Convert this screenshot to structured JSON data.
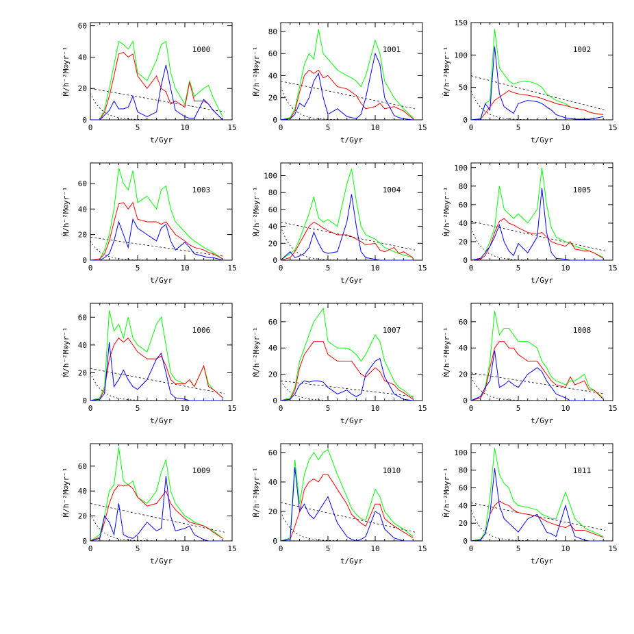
{
  "chart_data": {
    "type": "line",
    "layout": "4x3 grid",
    "xlabel": "t/Gyr",
    "ylabel": "Ṁ/h⁻²M⊙yr⁻¹",
    "xlim": [
      0,
      15
    ],
    "xticks": [
      0,
      5,
      10,
      15
    ],
    "series_colors": {
      "total": "#00ff00",
      "red": "#ff0000",
      "blue": "#0000ff",
      "dashed": "#000000"
    },
    "t": [
      0,
      1,
      1.5,
      2,
      2.5,
      3,
      3.5,
      4,
      4.5,
      5,
      6,
      7,
      7.5,
      8,
      8.5,
      9,
      10,
      10.5,
      11,
      12,
      12.5,
      13,
      14
    ],
    "panels": [
      {
        "label": "1000",
        "ylim": [
          0,
          62
        ],
        "yticks": [
          0,
          20,
          40,
          60
        ],
        "dash": [
          20,
          5,
          17
        ],
        "green": [
          0,
          0,
          7,
          20,
          35,
          50,
          48,
          45,
          50,
          30,
          25,
          38,
          48,
          50,
          30,
          20,
          10,
          25,
          15,
          20,
          22,
          14,
          2
        ],
        "red": [
          0,
          0,
          5,
          15,
          28,
          42,
          43,
          40,
          42,
          28,
          20,
          28,
          20,
          18,
          10,
          12,
          8,
          24,
          12,
          12,
          10,
          6,
          0
        ],
        "blue": [
          0,
          0,
          3,
          6,
          12,
          7,
          7,
          8,
          15,
          5,
          2,
          5,
          22,
          35,
          20,
          6,
          2,
          1,
          1,
          13,
          10,
          6,
          0
        ]
      },
      {
        "label": "1001",
        "ylim": [
          0,
          88
        ],
        "yticks": [
          0,
          20,
          40,
          60,
          80
        ],
        "dash": [
          35,
          10,
          30
        ],
        "green": [
          0,
          2,
          10,
          30,
          50,
          60,
          55,
          82,
          60,
          55,
          45,
          40,
          38,
          35,
          30,
          40,
          72,
          60,
          35,
          20,
          15,
          10,
          2
        ],
        "red": [
          0,
          1,
          8,
          25,
          40,
          45,
          42,
          45,
          38,
          40,
          30,
          28,
          25,
          22,
          15,
          10,
          12,
          15,
          10,
          12,
          10,
          8,
          1
        ],
        "blue": [
          0,
          1,
          5,
          15,
          12,
          20,
          35,
          42,
          20,
          5,
          10,
          3,
          2,
          1,
          5,
          20,
          60,
          50,
          20,
          4,
          2,
          1,
          0
        ]
      },
      {
        "label": "1002",
        "ylim": [
          0,
          150
        ],
        "yticks": [
          0,
          50,
          100,
          150
        ],
        "dash": [
          68,
          15,
          45
        ],
        "green": [
          0,
          2,
          25,
          30,
          140,
          80,
          70,
          60,
          55,
          58,
          60,
          55,
          50,
          40,
          35,
          30,
          25,
          20,
          18,
          15,
          12,
          10,
          8
        ],
        "red": [
          0,
          1,
          10,
          20,
          30,
          35,
          40,
          45,
          42,
          40,
          38,
          35,
          33,
          30,
          28,
          25,
          22,
          20,
          18,
          15,
          12,
          10,
          8
        ],
        "blue": [
          0,
          1,
          25,
          15,
          113,
          40,
          20,
          15,
          10,
          25,
          30,
          28,
          25,
          20,
          15,
          8,
          3,
          2,
          1,
          1,
          1,
          2,
          5
        ]
      },
      {
        "label": "1003",
        "ylim": [
          0,
          76
        ],
        "yticks": [
          0,
          20,
          40,
          60
        ],
        "dash": [
          18,
          3,
          15
        ],
        "green": [
          0,
          1,
          8,
          20,
          40,
          72,
          60,
          55,
          70,
          45,
          50,
          40,
          55,
          58,
          40,
          30,
          22,
          18,
          15,
          10,
          8,
          6,
          1
        ],
        "red": [
          0,
          1,
          5,
          15,
          30,
          44,
          45,
          40,
          45,
          32,
          30,
          30,
          28,
          30,
          25,
          20,
          15,
          12,
          10,
          8,
          6,
          5,
          1
        ],
        "blue": [
          0,
          0,
          2,
          5,
          15,
          30,
          20,
          10,
          32,
          25,
          20,
          15,
          25,
          28,
          15,
          8,
          14,
          10,
          5,
          3,
          2,
          2,
          0
        ]
      },
      {
        "label": "1004",
        "ylim": [
          0,
          115
        ],
        "yticks": [
          0,
          20,
          40,
          60,
          80,
          100
        ],
        "dash": [
          45,
          12,
          40
        ],
        "green": [
          0,
          8,
          12,
          25,
          40,
          55,
          75,
          50,
          45,
          48,
          40,
          90,
          108,
          70,
          40,
          30,
          25,
          20,
          15,
          10,
          8,
          6,
          3
        ],
        "red": [
          0,
          3,
          10,
          20,
          30,
          40,
          45,
          42,
          38,
          35,
          30,
          30,
          28,
          25,
          22,
          18,
          20,
          12,
          10,
          15,
          8,
          10,
          3
        ],
        "blue": [
          0,
          10,
          3,
          5,
          8,
          15,
          33,
          20,
          10,
          8,
          10,
          45,
          78,
          40,
          10,
          3,
          1,
          0,
          0,
          0,
          0,
          0,
          0
        ]
      },
      {
        "label": "1005",
        "ylim": [
          0,
          105
        ],
        "yticks": [
          0,
          20,
          40,
          60,
          80,
          100
        ],
        "dash": [
          42,
          10,
          35
        ],
        "green": [
          0,
          2,
          8,
          20,
          35,
          80,
          55,
          50,
          45,
          50,
          40,
          55,
          100,
          60,
          35,
          25,
          20,
          18,
          15,
          12,
          10,
          8,
          3
        ],
        "red": [
          0,
          1,
          5,
          15,
          30,
          42,
          45,
          40,
          38,
          35,
          30,
          28,
          30,
          25,
          20,
          18,
          15,
          20,
          12,
          10,
          10,
          8,
          2
        ],
        "blue": [
          0,
          2,
          8,
          15,
          25,
          38,
          20,
          10,
          5,
          18,
          8,
          25,
          78,
          30,
          8,
          2,
          1,
          0,
          0,
          0,
          0,
          0,
          0
        ]
      },
      {
        "label": "1006",
        "ylim": [
          0,
          70
        ],
        "yticks": [
          0,
          20,
          40,
          60
        ],
        "dash": [
          23,
          5,
          20
        ],
        "green": [
          0,
          2,
          10,
          65,
          50,
          55,
          45,
          60,
          45,
          40,
          35,
          55,
          60,
          40,
          20,
          15,
          12,
          15,
          10,
          25,
          12,
          8,
          2
        ],
        "red": [
          0,
          1,
          8,
          30,
          40,
          45,
          42,
          45,
          40,
          35,
          30,
          30,
          32,
          25,
          15,
          12,
          12,
          15,
          10,
          25,
          10,
          8,
          2
        ],
        "blue": [
          0,
          1,
          5,
          42,
          10,
          15,
          22,
          15,
          10,
          8,
          15,
          30,
          34,
          20,
          5,
          2,
          1,
          0,
          0,
          0,
          0,
          0,
          0
        ]
      },
      {
        "label": "1007",
        "ylim": [
          0,
          74
        ],
        "yticks": [
          0,
          20,
          40,
          60
        ],
        "dash": [
          15,
          3,
          15
        ],
        "green": [
          0,
          2,
          10,
          30,
          40,
          50,
          60,
          65,
          70,
          45,
          40,
          40,
          38,
          35,
          30,
          35,
          50,
          45,
          30,
          15,
          10,
          8,
          2
        ],
        "red": [
          0,
          1,
          8,
          25,
          35,
          40,
          45,
          45,
          45,
          35,
          30,
          30,
          30,
          25,
          20,
          18,
          25,
          22,
          15,
          12,
          8,
          6,
          1
        ],
        "blue": [
          0,
          1,
          5,
          12,
          15,
          14,
          15,
          15,
          14,
          10,
          5,
          8,
          5,
          3,
          5,
          20,
          30,
          32,
          18,
          5,
          3,
          1,
          0
        ]
      },
      {
        "label": "1008",
        "ylim": [
          0,
          74
        ],
        "yticks": [
          0,
          20,
          40,
          60
        ],
        "dash": [
          21,
          5,
          18
        ],
        "green": [
          0,
          3,
          10,
          30,
          68,
          50,
          55,
          55,
          50,
          45,
          45,
          40,
          30,
          25,
          18,
          15,
          12,
          15,
          15,
          20,
          10,
          8,
          2
        ],
        "red": [
          0,
          2,
          8,
          25,
          40,
          45,
          45,
          40,
          40,
          35,
          30,
          30,
          25,
          20,
          15,
          12,
          10,
          18,
          12,
          15,
          8,
          8,
          1
        ],
        "blue": [
          0,
          3,
          10,
          15,
          38,
          10,
          12,
          15,
          12,
          10,
          20,
          25,
          22,
          15,
          10,
          5,
          2,
          0,
          0,
          0,
          0,
          0,
          0
        ]
      },
      {
        "label": "1009",
        "ylim": [
          0,
          78
        ],
        "yticks": [
          0,
          20,
          40,
          60
        ],
        "dash": [
          30,
          7,
          22
        ],
        "green": [
          0,
          5,
          20,
          40,
          45,
          75,
          48,
          45,
          48,
          35,
          30,
          40,
          55,
          65,
          40,
          30,
          20,
          18,
          15,
          12,
          10,
          8,
          2
        ],
        "red": [
          0,
          3,
          15,
          30,
          40,
          45,
          44,
          45,
          42,
          35,
          28,
          30,
          35,
          40,
          30,
          25,
          18,
          15,
          14,
          12,
          10,
          7,
          2
        ],
        "blue": [
          0,
          2,
          20,
          15,
          5,
          30,
          5,
          3,
          2,
          5,
          15,
          8,
          10,
          52,
          20,
          8,
          10,
          12,
          5,
          1,
          0,
          0,
          0
        ]
      },
      {
        "label": "1010",
        "ylim": [
          0,
          66
        ],
        "yticks": [
          0,
          20,
          40,
          60
        ],
        "dash": [
          26,
          6,
          20
        ],
        "green": [
          0,
          2,
          55,
          25,
          45,
          55,
          60,
          55,
          60,
          62,
          45,
          30,
          22,
          18,
          15,
          14,
          35,
          30,
          20,
          12,
          10,
          8,
          3
        ],
        "red": [
          0,
          1,
          10,
          20,
          35,
          40,
          42,
          40,
          45,
          45,
          35,
          25,
          18,
          15,
          12,
          10,
          25,
          25,
          15,
          10,
          8,
          6,
          2
        ],
        "blue": [
          0,
          1,
          50,
          20,
          25,
          18,
          15,
          20,
          25,
          30,
          12,
          3,
          1,
          0,
          1,
          3,
          20,
          18,
          8,
          2,
          1,
          0,
          0
        ]
      },
      {
        "label": "1011",
        "ylim": [
          0,
          110
        ],
        "yticks": [
          0,
          20,
          40,
          60,
          80,
          100
        ],
        "dash": [
          43,
          12,
          35
        ],
        "green": [
          0,
          2,
          10,
          50,
          105,
          75,
          65,
          60,
          45,
          40,
          38,
          35,
          30,
          28,
          25,
          25,
          55,
          40,
          25,
          15,
          12,
          10,
          5
        ],
        "red": [
          0,
          1,
          8,
          30,
          40,
          45,
          42,
          40,
          35,
          32,
          30,
          28,
          25,
          22,
          20,
          18,
          15,
          18,
          12,
          12,
          10,
          8,
          4
        ],
        "blue": [
          0,
          1,
          8,
          30,
          82,
          40,
          25,
          20,
          15,
          10,
          25,
          30,
          20,
          10,
          8,
          5,
          40,
          20,
          5,
          1,
          0,
          0,
          0
        ]
      }
    ]
  }
}
